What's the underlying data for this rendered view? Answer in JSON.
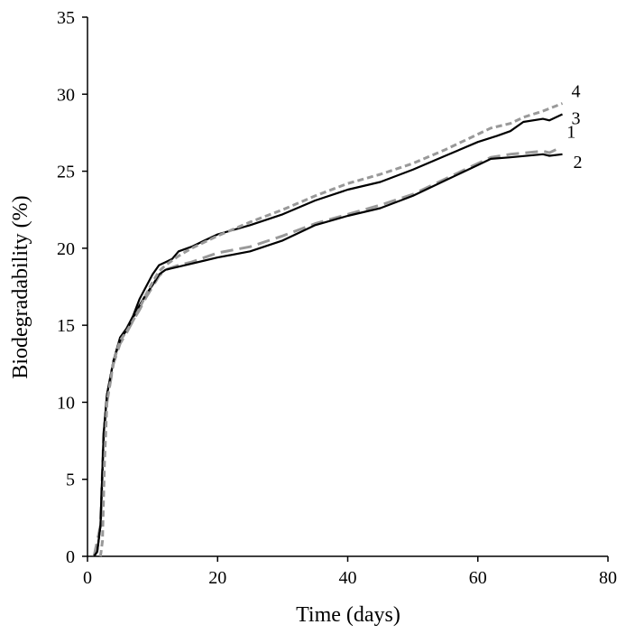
{
  "chart_data": {
    "type": "line",
    "title": "",
    "xlabel": "Time (days)",
    "ylabel": "Biodegradability (%)",
    "xlim": [
      0,
      80
    ],
    "ylim": [
      0,
      35
    ],
    "xticks": [
      0,
      20,
      40,
      60,
      80
    ],
    "yticks": [
      0,
      5,
      10,
      15,
      20,
      25,
      30,
      35
    ],
    "grid": false,
    "legend": "none",
    "series": [
      {
        "name": "1",
        "color": "#999999",
        "dash": "long",
        "points": [
          [
            1,
            0
          ],
          [
            2,
            2
          ],
          [
            2.5,
            8
          ],
          [
            3,
            10
          ],
          [
            4,
            12.5
          ],
          [
            5,
            13.8
          ],
          [
            6,
            14.5
          ],
          [
            7,
            15.3
          ],
          [
            8,
            16
          ],
          [
            9,
            16.8
          ],
          [
            10,
            17.5
          ],
          [
            11,
            18.2
          ],
          [
            12,
            18.6
          ],
          [
            14,
            18.9
          ],
          [
            16,
            19.1
          ],
          [
            18,
            19.4
          ],
          [
            20,
            19.7
          ],
          [
            25,
            20.1
          ],
          [
            30,
            20.8
          ],
          [
            35,
            21.6
          ],
          [
            40,
            22.2
          ],
          [
            45,
            22.8
          ],
          [
            50,
            23.5
          ],
          [
            55,
            24.5
          ],
          [
            60,
            25.5
          ],
          [
            62,
            25.9
          ],
          [
            65,
            26.1
          ],
          [
            70,
            26.3
          ],
          [
            71,
            26.2
          ],
          [
            72,
            26.4
          ]
        ]
      },
      {
        "name": "2",
        "color": "#000000",
        "dash": "solid",
        "points": [
          [
            1,
            0
          ],
          [
            1.5,
            0.3
          ],
          [
            2,
            2
          ],
          [
            2.5,
            8
          ],
          [
            3,
            10.5
          ],
          [
            4,
            12.7
          ],
          [
            5,
            14
          ],
          [
            6,
            14.7
          ],
          [
            7,
            15.5
          ],
          [
            8,
            16.3
          ],
          [
            9,
            17
          ],
          [
            10,
            17.6
          ],
          [
            11,
            18.3
          ],
          [
            12,
            18.6
          ],
          [
            14,
            18.8
          ],
          [
            16,
            19
          ],
          [
            18,
            19.2
          ],
          [
            20,
            19.4
          ],
          [
            25,
            19.8
          ],
          [
            30,
            20.5
          ],
          [
            35,
            21.5
          ],
          [
            40,
            22.1
          ],
          [
            45,
            22.6
          ],
          [
            50,
            23.4
          ],
          [
            55,
            24.4
          ],
          [
            60,
            25.4
          ],
          [
            62,
            25.8
          ],
          [
            65,
            25.9
          ],
          [
            70,
            26.1
          ],
          [
            71,
            26
          ],
          [
            73,
            26.1
          ]
        ]
      },
      {
        "name": "3",
        "color": "#000000",
        "dash": "solid",
        "points": [
          [
            1,
            0
          ],
          [
            1.5,
            0.3
          ],
          [
            2,
            2
          ],
          [
            2.5,
            8
          ],
          [
            3,
            10.5
          ],
          [
            4,
            12.7
          ],
          [
            5,
            14.2
          ],
          [
            6,
            14.8
          ],
          [
            7,
            15.6
          ],
          [
            8,
            16.7
          ],
          [
            9,
            17.5
          ],
          [
            10,
            18.3
          ],
          [
            11,
            18.9
          ],
          [
            12,
            19.1
          ],
          [
            13,
            19.3
          ],
          [
            14,
            19.8
          ],
          [
            16,
            20.1
          ],
          [
            18,
            20.5
          ],
          [
            20,
            20.9
          ],
          [
            25,
            21.5
          ],
          [
            30,
            22.2
          ],
          [
            35,
            23.1
          ],
          [
            40,
            23.8
          ],
          [
            45,
            24.3
          ],
          [
            50,
            25.1
          ],
          [
            55,
            26
          ],
          [
            60,
            26.9
          ],
          [
            63,
            27.3
          ],
          [
            65,
            27.6
          ],
          [
            67,
            28.2
          ],
          [
            70,
            28.4
          ],
          [
            71,
            28.3
          ],
          [
            73,
            28.7
          ]
        ]
      },
      {
        "name": "4",
        "color": "#999999",
        "dash": "short",
        "points": [
          [
            2,
            0
          ],
          [
            2.3,
            1
          ],
          [
            2.6,
            6
          ],
          [
            3,
            10
          ],
          [
            4,
            12.6
          ],
          [
            5,
            14
          ],
          [
            6,
            14.6
          ],
          [
            7,
            15.3
          ],
          [
            8,
            16.1
          ],
          [
            9,
            17
          ],
          [
            10,
            17.8
          ],
          [
            11,
            18.5
          ],
          [
            12,
            18.9
          ],
          [
            14,
            19.5
          ],
          [
            16,
            20
          ],
          [
            18,
            20.4
          ],
          [
            20,
            20.8
          ],
          [
            25,
            21.7
          ],
          [
            30,
            22.5
          ],
          [
            35,
            23.4
          ],
          [
            40,
            24.2
          ],
          [
            45,
            24.8
          ],
          [
            50,
            25.5
          ],
          [
            55,
            26.4
          ],
          [
            60,
            27.4
          ],
          [
            62,
            27.8
          ],
          [
            65,
            28.1
          ],
          [
            67,
            28.5
          ],
          [
            70,
            28.9
          ],
          [
            73,
            29.4
          ]
        ]
      }
    ]
  }
}
